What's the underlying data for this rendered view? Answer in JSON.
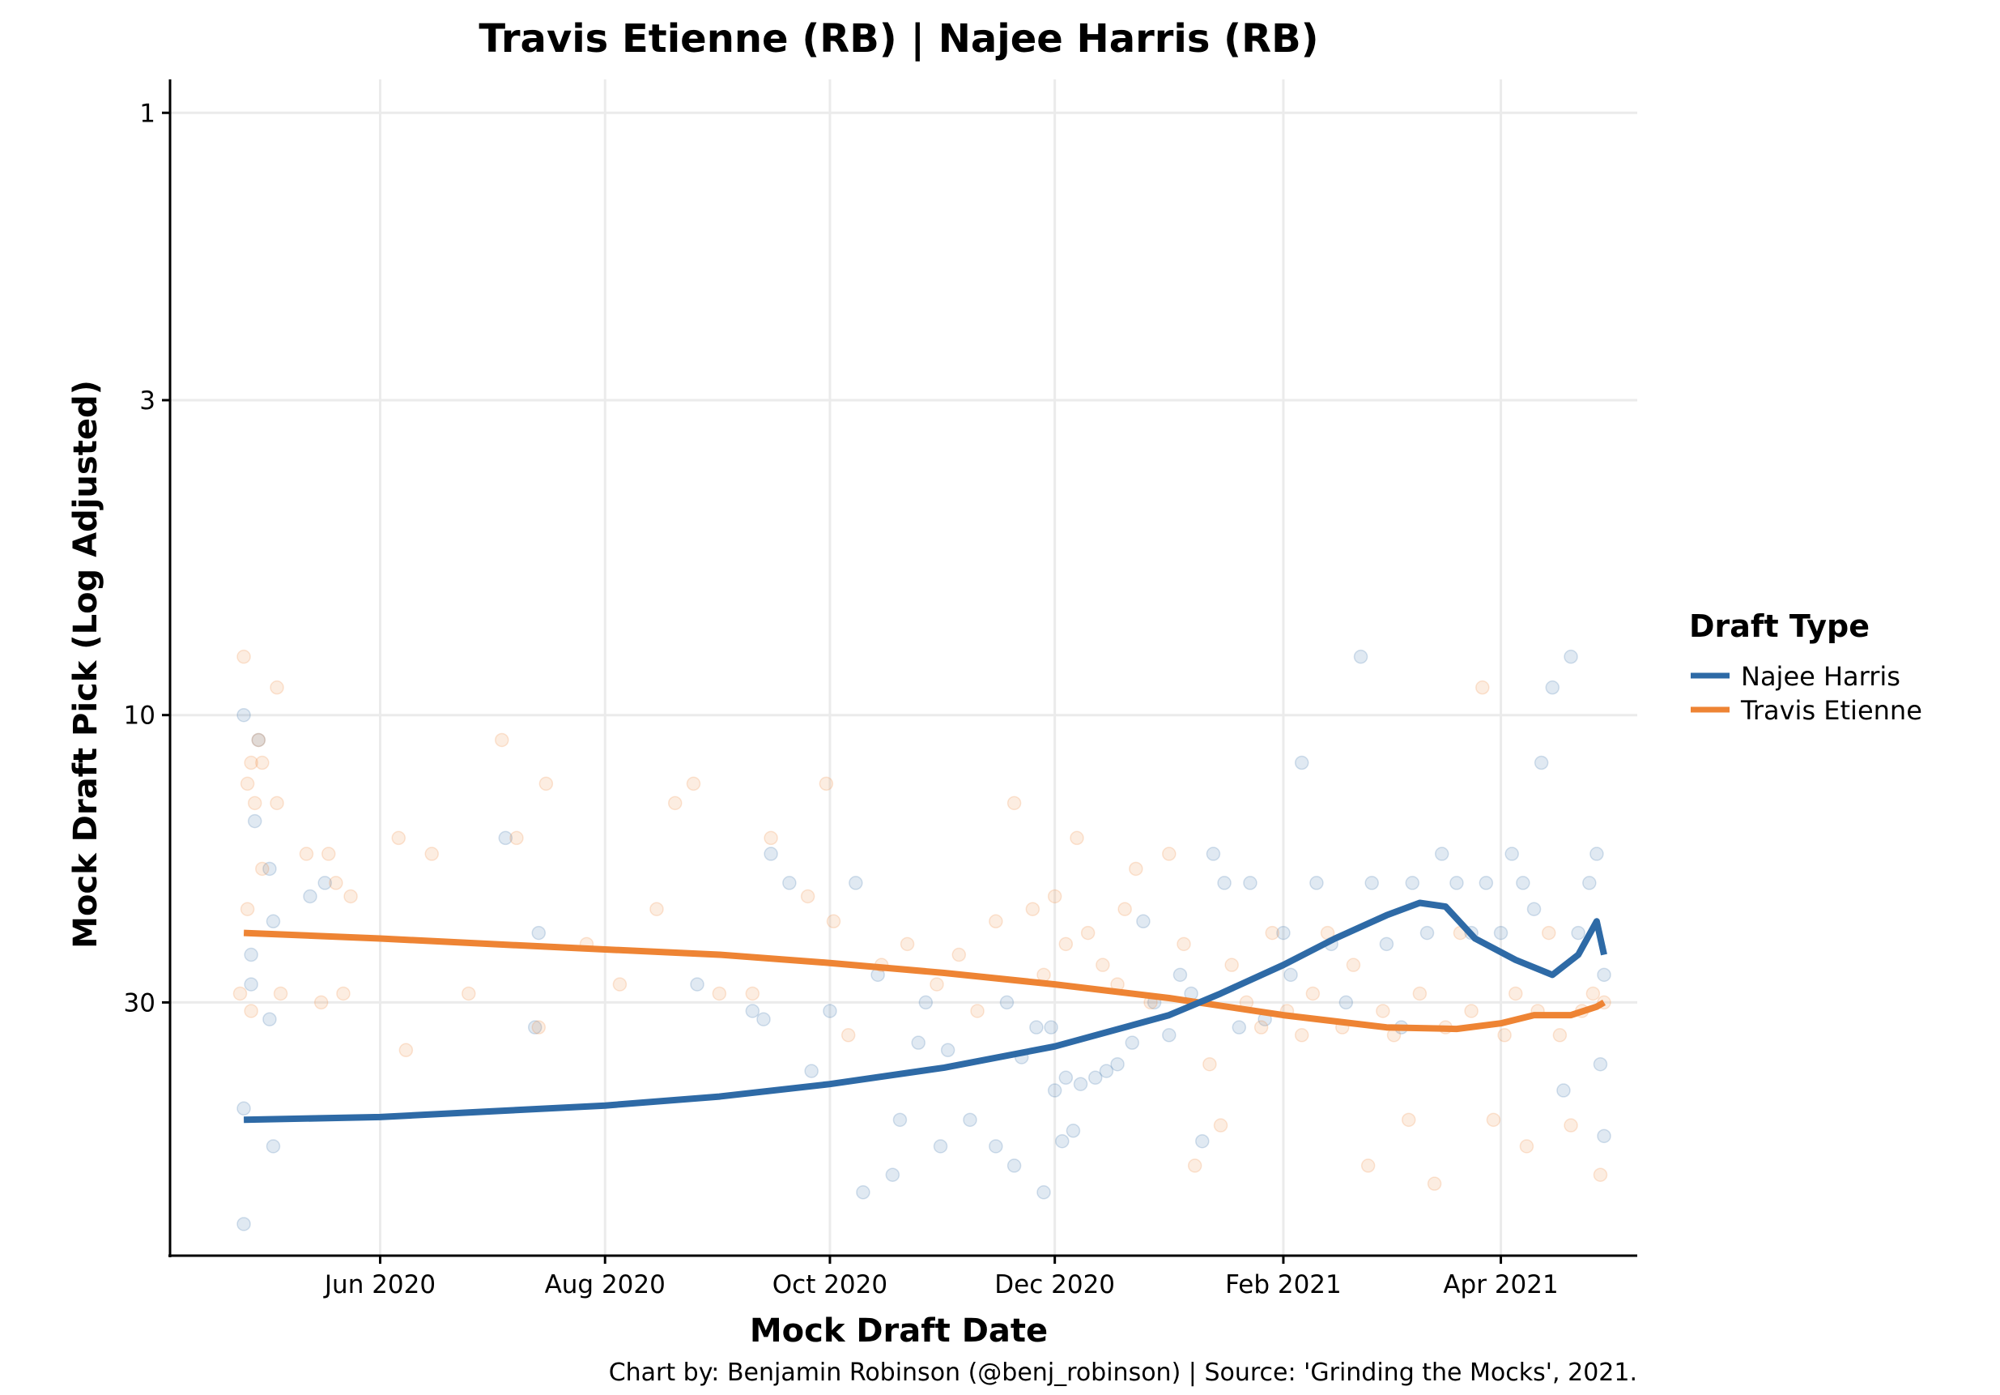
{
  "colors": {
    "najee": "#2E6AA6",
    "etienne": "#EE8434",
    "grid": "#EBEBEB",
    "axis": "#000000"
  },
  "chart_data": {
    "type": "scatter",
    "title": "Travis Etienne (RB) | Najee Harris (RB)",
    "xlabel": "Mock Draft Date",
    "ylabel": "Mock Draft Pick (Log Adjusted)",
    "caption": "Chart by: Benjamin Robinson (@benj_robinson) | Source: 'Grinding the Mocks', 2021.",
    "y_scale": "log",
    "y_reversed": true,
    "xlim": [
      "2020-04-05",
      "2021-05-08"
    ],
    "ylim": [
      0.88,
      79
    ],
    "x_ticks": [
      {
        "date": "2020-06-01",
        "label": "Jun 2020"
      },
      {
        "date": "2020-08-01",
        "label": "Aug 2020"
      },
      {
        "date": "2020-10-01",
        "label": "Oct 2020"
      },
      {
        "date": "2020-12-01",
        "label": "Dec 2020"
      },
      {
        "date": "2021-02-01",
        "label": "Feb 2021"
      },
      {
        "date": "2021-04-01",
        "label": "Apr 2021"
      }
    ],
    "y_ticks": [
      1,
      3,
      10,
      30
    ],
    "legend": {
      "title": "Draft Type",
      "position": "right",
      "entries": [
        "Najee Harris",
        "Travis Etienne"
      ]
    },
    "grid": true,
    "series": [
      {
        "name": "Najee Harris",
        "color": "#2E6AA6",
        "trend": [
          {
            "x": "2020-04-25",
            "y": 47
          },
          {
            "x": "2020-06-01",
            "y": 46.5
          },
          {
            "x": "2020-07-01",
            "y": 45.5
          },
          {
            "x": "2020-08-01",
            "y": 44.5
          },
          {
            "x": "2020-09-01",
            "y": 43
          },
          {
            "x": "2020-10-01",
            "y": 41
          },
          {
            "x": "2020-11-01",
            "y": 38.5
          },
          {
            "x": "2020-12-01",
            "y": 35.5
          },
          {
            "x": "2021-01-01",
            "y": 31.5
          },
          {
            "x": "2021-01-15",
            "y": 29
          },
          {
            "x": "2021-02-01",
            "y": 26
          },
          {
            "x": "2021-02-15",
            "y": 23.5
          },
          {
            "x": "2021-03-01",
            "y": 21.5
          },
          {
            "x": "2021-03-10",
            "y": 20.5
          },
          {
            "x": "2021-03-17",
            "y": 20.8
          },
          {
            "x": "2021-03-25",
            "y": 23.5
          },
          {
            "x": "2021-04-05",
            "y": 25.5
          },
          {
            "x": "2021-04-15",
            "y": 27
          },
          {
            "x": "2021-04-22",
            "y": 25
          },
          {
            "x": "2021-04-27",
            "y": 22
          },
          {
            "x": "2021-04-29",
            "y": 25
          }
        ],
        "points": [
          {
            "x": "2020-04-25",
            "y": 10
          },
          {
            "x": "2020-04-25",
            "y": 45
          },
          {
            "x": "2020-04-25",
            "y": 70
          },
          {
            "x": "2020-04-27",
            "y": 25
          },
          {
            "x": "2020-04-27",
            "y": 28
          },
          {
            "x": "2020-04-28",
            "y": 15
          },
          {
            "x": "2020-04-29",
            "y": 11
          },
          {
            "x": "2020-05-02",
            "y": 32
          },
          {
            "x": "2020-05-02",
            "y": 18
          },
          {
            "x": "2020-05-03",
            "y": 52
          },
          {
            "x": "2020-05-03",
            "y": 22
          },
          {
            "x": "2020-05-13",
            "y": 20
          },
          {
            "x": "2020-05-17",
            "y": 19
          },
          {
            "x": "2020-07-05",
            "y": 16
          },
          {
            "x": "2020-07-13",
            "y": 33
          },
          {
            "x": "2020-07-14",
            "y": 23
          },
          {
            "x": "2020-08-26",
            "y": 28
          },
          {
            "x": "2020-09-10",
            "y": 31
          },
          {
            "x": "2020-09-13",
            "y": 32
          },
          {
            "x": "2020-09-15",
            "y": 17
          },
          {
            "x": "2020-09-20",
            "y": 19
          },
          {
            "x": "2020-09-26",
            "y": 39
          },
          {
            "x": "2020-10-01",
            "y": 31
          },
          {
            "x": "2020-10-08",
            "y": 19
          },
          {
            "x": "2020-10-10",
            "y": 62
          },
          {
            "x": "2020-10-14",
            "y": 27
          },
          {
            "x": "2020-10-18",
            "y": 58
          },
          {
            "x": "2020-10-20",
            "y": 47
          },
          {
            "x": "2020-10-25",
            "y": 35
          },
          {
            "x": "2020-10-27",
            "y": 30
          },
          {
            "x": "2020-10-31",
            "y": 52
          },
          {
            "x": "2020-11-02",
            "y": 36
          },
          {
            "x": "2020-11-08",
            "y": 47
          },
          {
            "x": "2020-11-15",
            "y": 52
          },
          {
            "x": "2020-11-18",
            "y": 30
          },
          {
            "x": "2020-11-20",
            "y": 56
          },
          {
            "x": "2020-11-22",
            "y": 37
          },
          {
            "x": "2020-11-26",
            "y": 33
          },
          {
            "x": "2020-11-28",
            "y": 62
          },
          {
            "x": "2020-11-30",
            "y": 33
          },
          {
            "x": "2020-12-01",
            "y": 42
          },
          {
            "x": "2020-12-03",
            "y": 51
          },
          {
            "x": "2020-12-04",
            "y": 40
          },
          {
            "x": "2020-12-06",
            "y": 49
          },
          {
            "x": "2020-12-08",
            "y": 41
          },
          {
            "x": "2020-12-12",
            "y": 40
          },
          {
            "x": "2020-12-15",
            "y": 39
          },
          {
            "x": "2020-12-18",
            "y": 38
          },
          {
            "x": "2020-12-22",
            "y": 35
          },
          {
            "x": "2020-12-25",
            "y": 22
          },
          {
            "x": "2020-12-28",
            "y": 30
          },
          {
            "x": "2021-01-01",
            "y": 34
          },
          {
            "x": "2021-01-04",
            "y": 27
          },
          {
            "x": "2021-01-07",
            "y": 29
          },
          {
            "x": "2021-01-10",
            "y": 51
          },
          {
            "x": "2021-01-13",
            "y": 17
          },
          {
            "x": "2021-01-16",
            "y": 19
          },
          {
            "x": "2021-01-20",
            "y": 33
          },
          {
            "x": "2021-01-23",
            "y": 19
          },
          {
            "x": "2021-01-27",
            "y": 32
          },
          {
            "x": "2021-02-01",
            "y": 23
          },
          {
            "x": "2021-02-03",
            "y": 27
          },
          {
            "x": "2021-02-06",
            "y": 12
          },
          {
            "x": "2021-02-10",
            "y": 19
          },
          {
            "x": "2021-02-14",
            "y": 24
          },
          {
            "x": "2021-02-18",
            "y": 30
          },
          {
            "x": "2021-02-22",
            "y": 8
          },
          {
            "x": "2021-02-25",
            "y": 19
          },
          {
            "x": "2021-03-01",
            "y": 24
          },
          {
            "x": "2021-03-05",
            "y": 33
          },
          {
            "x": "2021-03-08",
            "y": 19
          },
          {
            "x": "2021-03-12",
            "y": 23
          },
          {
            "x": "2021-03-16",
            "y": 17
          },
          {
            "x": "2021-03-20",
            "y": 19
          },
          {
            "x": "2021-03-24",
            "y": 23
          },
          {
            "x": "2021-03-28",
            "y": 19
          },
          {
            "x": "2021-04-01",
            "y": 23
          },
          {
            "x": "2021-04-04",
            "y": 17
          },
          {
            "x": "2021-04-07",
            "y": 19
          },
          {
            "x": "2021-04-10",
            "y": 21
          },
          {
            "x": "2021-04-12",
            "y": 12
          },
          {
            "x": "2021-04-15",
            "y": 9
          },
          {
            "x": "2021-04-18",
            "y": 42
          },
          {
            "x": "2021-04-20",
            "y": 8
          },
          {
            "x": "2021-04-22",
            "y": 23
          },
          {
            "x": "2021-04-25",
            "y": 19
          },
          {
            "x": "2021-04-27",
            "y": 17
          },
          {
            "x": "2021-04-28",
            "y": 38
          },
          {
            "x": "2021-04-29",
            "y": 50
          },
          {
            "x": "2021-04-29",
            "y": 27
          }
        ]
      },
      {
        "name": "Travis Etienne",
        "color": "#EE8434",
        "trend": [
          {
            "x": "2020-04-25",
            "y": 23
          },
          {
            "x": "2020-06-01",
            "y": 23.5
          },
          {
            "x": "2020-07-01",
            "y": 24
          },
          {
            "x": "2020-08-01",
            "y": 24.5
          },
          {
            "x": "2020-09-01",
            "y": 25
          },
          {
            "x": "2020-10-01",
            "y": 25.8
          },
          {
            "x": "2020-11-01",
            "y": 26.8
          },
          {
            "x": "2020-12-01",
            "y": 28
          },
          {
            "x": "2021-01-01",
            "y": 29.5
          },
          {
            "x": "2021-02-01",
            "y": 31.5
          },
          {
            "x": "2021-03-01",
            "y": 33
          },
          {
            "x": "2021-03-20",
            "y": 33.2
          },
          {
            "x": "2021-04-01",
            "y": 32.5
          },
          {
            "x": "2021-04-10",
            "y": 31.5
          },
          {
            "x": "2021-04-20",
            "y": 31.5
          },
          {
            "x": "2021-04-27",
            "y": 30.5
          },
          {
            "x": "2021-04-29",
            "y": 30
          }
        ],
        "points": [
          {
            "x": "2020-04-24",
            "y": 29
          },
          {
            "x": "2020-04-25",
            "y": 8
          },
          {
            "x": "2020-04-26",
            "y": 13
          },
          {
            "x": "2020-04-26",
            "y": 21
          },
          {
            "x": "2020-04-27",
            "y": 12
          },
          {
            "x": "2020-04-27",
            "y": 31
          },
          {
            "x": "2020-04-28",
            "y": 14
          },
          {
            "x": "2020-04-29",
            "y": 11
          },
          {
            "x": "2020-04-30",
            "y": 12
          },
          {
            "x": "2020-04-30",
            "y": 18
          },
          {
            "x": "2020-05-04",
            "y": 9
          },
          {
            "x": "2020-05-04",
            "y": 14
          },
          {
            "x": "2020-05-05",
            "y": 29
          },
          {
            "x": "2020-05-12",
            "y": 17
          },
          {
            "x": "2020-05-16",
            "y": 30
          },
          {
            "x": "2020-05-18",
            "y": 17
          },
          {
            "x": "2020-05-20",
            "y": 19
          },
          {
            "x": "2020-05-22",
            "y": 29
          },
          {
            "x": "2020-05-24",
            "y": 20
          },
          {
            "x": "2020-06-06",
            "y": 16
          },
          {
            "x": "2020-06-08",
            "y": 36
          },
          {
            "x": "2020-06-15",
            "y": 17
          },
          {
            "x": "2020-06-25",
            "y": 29
          },
          {
            "x": "2020-07-04",
            "y": 11
          },
          {
            "x": "2020-07-08",
            "y": 16
          },
          {
            "x": "2020-07-14",
            "y": 33
          },
          {
            "x": "2020-07-16",
            "y": 13
          },
          {
            "x": "2020-07-27",
            "y": 24
          },
          {
            "x": "2020-08-05",
            "y": 28
          },
          {
            "x": "2020-08-15",
            "y": 21
          },
          {
            "x": "2020-08-20",
            "y": 14
          },
          {
            "x": "2020-08-25",
            "y": 13
          },
          {
            "x": "2020-09-01",
            "y": 29
          },
          {
            "x": "2020-09-10",
            "y": 29
          },
          {
            "x": "2020-09-15",
            "y": 16
          },
          {
            "x": "2020-09-25",
            "y": 20
          },
          {
            "x": "2020-09-30",
            "y": 13
          },
          {
            "x": "2020-10-02",
            "y": 22
          },
          {
            "x": "2020-10-06",
            "y": 34
          },
          {
            "x": "2020-10-15",
            "y": 26
          },
          {
            "x": "2020-10-22",
            "y": 24
          },
          {
            "x": "2020-10-30",
            "y": 28
          },
          {
            "x": "2020-11-05",
            "y": 25
          },
          {
            "x": "2020-11-10",
            "y": 31
          },
          {
            "x": "2020-11-15",
            "y": 22
          },
          {
            "x": "2020-11-20",
            "y": 14
          },
          {
            "x": "2020-11-25",
            "y": 21
          },
          {
            "x": "2020-11-28",
            "y": 27
          },
          {
            "x": "2020-12-01",
            "y": 20
          },
          {
            "x": "2020-12-04",
            "y": 24
          },
          {
            "x": "2020-12-07",
            "y": 16
          },
          {
            "x": "2020-12-10",
            "y": 23
          },
          {
            "x": "2020-12-14",
            "y": 26
          },
          {
            "x": "2020-12-18",
            "y": 28
          },
          {
            "x": "2020-12-20",
            "y": 21
          },
          {
            "x": "2020-12-23",
            "y": 18
          },
          {
            "x": "2020-12-27",
            "y": 30
          },
          {
            "x": "2021-01-01",
            "y": 17
          },
          {
            "x": "2021-01-05",
            "y": 24
          },
          {
            "x": "2021-01-08",
            "y": 56
          },
          {
            "x": "2021-01-12",
            "y": 38
          },
          {
            "x": "2021-01-15",
            "y": 48
          },
          {
            "x": "2021-01-18",
            "y": 26
          },
          {
            "x": "2021-01-22",
            "y": 30
          },
          {
            "x": "2021-01-26",
            "y": 33
          },
          {
            "x": "2021-01-29",
            "y": 23
          },
          {
            "x": "2021-02-02",
            "y": 31
          },
          {
            "x": "2021-02-06",
            "y": 34
          },
          {
            "x": "2021-02-09",
            "y": 29
          },
          {
            "x": "2021-02-13",
            "y": 23
          },
          {
            "x": "2021-02-17",
            "y": 33
          },
          {
            "x": "2021-02-20",
            "y": 26
          },
          {
            "x": "2021-02-24",
            "y": 56
          },
          {
            "x": "2021-02-28",
            "y": 31
          },
          {
            "x": "2021-03-03",
            "y": 34
          },
          {
            "x": "2021-03-07",
            "y": 47
          },
          {
            "x": "2021-03-10",
            "y": 29
          },
          {
            "x": "2021-03-14",
            "y": 60
          },
          {
            "x": "2021-03-17",
            "y": 33
          },
          {
            "x": "2021-03-21",
            "y": 23
          },
          {
            "x": "2021-03-24",
            "y": 31
          },
          {
            "x": "2021-03-27",
            "y": 9
          },
          {
            "x": "2021-03-30",
            "y": 47
          },
          {
            "x": "2021-04-02",
            "y": 34
          },
          {
            "x": "2021-04-05",
            "y": 29
          },
          {
            "x": "2021-04-08",
            "y": 52
          },
          {
            "x": "2021-04-11",
            "y": 31
          },
          {
            "x": "2021-04-14",
            "y": 23
          },
          {
            "x": "2021-04-17",
            "y": 34
          },
          {
            "x": "2021-04-20",
            "y": 48
          },
          {
            "x": "2021-04-23",
            "y": 31
          },
          {
            "x": "2021-04-26",
            "y": 29
          },
          {
            "x": "2021-04-28",
            "y": 58
          },
          {
            "x": "2021-04-29",
            "y": 30
          }
        ]
      }
    ]
  }
}
